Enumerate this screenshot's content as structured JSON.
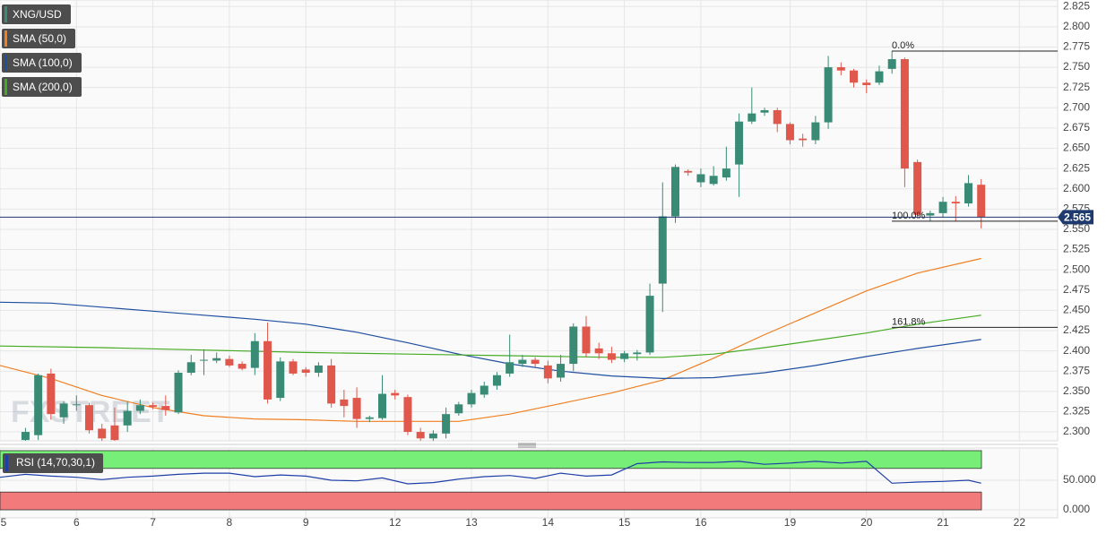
{
  "chart_data": [
    {
      "type": "candlestick",
      "title": "XNG/USD",
      "watermark": "FXSTREET",
      "up_color": "#3a8b76",
      "down_color": "#e0574b",
      "x": [
        2,
        3,
        4,
        5,
        6,
        7,
        8,
        9,
        10,
        11,
        12,
        13,
        14,
        15,
        16,
        17,
        18,
        19,
        20,
        21,
        22,
        23,
        24,
        25,
        26,
        27,
        28,
        29,
        30,
        31,
        32,
        33,
        34,
        35,
        36,
        37,
        38,
        39,
        40,
        41,
        42,
        43,
        44,
        45,
        46,
        47,
        48,
        49,
        50,
        51,
        52,
        53,
        54,
        55,
        56,
        57,
        58,
        59,
        60,
        61,
        62,
        63,
        64,
        65,
        66,
        67,
        68,
        69,
        70,
        71,
        72,
        73,
        74,
        75,
        76,
        77
      ],
      "open": [
        2.29,
        2.296,
        2.372,
        2.318,
        2.333,
        2.333,
        2.304,
        2.308,
        2.308,
        2.326,
        2.333,
        2.332,
        2.324,
        2.373,
        2.388,
        2.388,
        2.39,
        2.384,
        2.379,
        2.412,
        2.342,
        2.387,
        2.377,
        2.373,
        2.382,
        2.34,
        2.342,
        2.316,
        2.317,
        2.348,
        2.343,
        2.3,
        2.292,
        2.298,
        2.323,
        2.334,
        2.346,
        2.357,
        2.372,
        2.384,
        2.389,
        2.382,
        2.367,
        2.384,
        2.43,
        2.403,
        2.397,
        2.39,
        2.396,
        2.398,
        2.483,
        2.566,
        2.622,
        2.608,
        2.606,
        2.614,
        2.63,
        2.683,
        2.694,
        2.697,
        2.68,
        2.662,
        2.66,
        2.682,
        2.75,
        2.746,
        2.731,
        2.731,
        2.748,
        2.76,
        2.633,
        2.567,
        2.57,
        2.584,
        2.582,
        2.605
      ],
      "high": [
        2.305,
        2.372,
        2.378,
        2.338,
        2.345,
        2.336,
        2.31,
        2.33,
        2.337,
        2.34,
        2.336,
        2.345,
        2.376,
        2.395,
        2.402,
        2.398,
        2.394,
        2.387,
        2.422,
        2.435,
        2.392,
        2.39,
        2.38,
        2.386,
        2.39,
        2.352,
        2.355,
        2.32,
        2.37,
        2.352,
        2.346,
        2.305,
        2.302,
        2.33,
        2.337,
        2.352,
        2.362,
        2.374,
        2.42,
        2.395,
        2.392,
        2.388,
        2.395,
        2.434,
        2.443,
        2.41,
        2.405,
        2.4,
        2.401,
        2.483,
        2.608,
        2.63,
        2.624,
        2.625,
        2.628,
        2.652,
        2.693,
        2.725,
        2.7,
        2.7,
        2.682,
        2.668,
        2.69,
        2.764,
        2.756,
        2.748,
        2.735,
        2.752,
        2.77,
        2.762,
        2.636,
        2.573,
        2.59,
        2.591,
        2.617,
        2.612
      ],
      "low": [
        2.289,
        2.29,
        2.315,
        2.31,
        2.326,
        2.298,
        2.289,
        2.289,
        2.3,
        2.322,
        2.328,
        2.32,
        2.322,
        2.37,
        2.37,
        2.385,
        2.38,
        2.376,
        2.37,
        2.335,
        2.338,
        2.37,
        2.368,
        2.368,
        2.33,
        2.318,
        2.305,
        2.312,
        2.315,
        2.34,
        2.296,
        2.289,
        2.289,
        2.292,
        2.32,
        2.33,
        2.342,
        2.352,
        2.368,
        2.38,
        2.38,
        2.36,
        2.362,
        2.375,
        2.392,
        2.39,
        2.385,
        2.386,
        2.388,
        2.395,
        2.448,
        2.558,
        2.616,
        2.602,
        2.604,
        2.61,
        2.59,
        2.68,
        2.69,
        2.67,
        2.655,
        2.652,
        2.655,
        2.674,
        2.74,
        2.725,
        2.718,
        2.728,
        2.742,
        2.602,
        2.563,
        2.56,
        2.565,
        2.56,
        2.578,
        2.551
      ],
      "close": [
        2.3,
        2.37,
        2.322,
        2.335,
        2.334,
        2.302,
        2.292,
        2.29,
        2.326,
        2.333,
        2.331,
        2.327,
        2.373,
        2.386,
        2.389,
        2.391,
        2.382,
        2.378,
        2.412,
        2.34,
        2.387,
        2.372,
        2.373,
        2.382,
        2.335,
        2.332,
        2.316,
        2.318,
        2.347,
        2.345,
        2.3,
        2.292,
        2.298,
        2.322,
        2.334,
        2.348,
        2.357,
        2.37,
        2.386,
        2.389,
        2.384,
        2.366,
        2.384,
        2.43,
        2.397,
        2.397,
        2.389,
        2.397,
        2.398,
        2.468,
        2.566,
        2.627,
        2.62,
        2.618,
        2.616,
        2.625,
        2.683,
        2.693,
        2.697,
        2.68,
        2.66,
        2.66,
        2.682,
        2.75,
        2.746,
        2.731,
        2.728,
        2.745,
        2.76,
        2.625,
        2.568,
        2.57,
        2.584,
        2.582,
        2.607,
        2.565
      ],
      "lines": [
        {
          "name": "SMA (50,0)",
          "color": "#f07f22",
          "x": [
            0,
            4,
            8,
            12,
            16,
            20,
            24,
            28,
            32,
            36,
            40,
            44,
            48,
            52,
            56,
            60,
            64,
            68,
            72,
            77
          ],
          "values": [
            2.382,
            2.366,
            2.345,
            2.33,
            2.32,
            2.316,
            2.315,
            2.313,
            2.313,
            2.313,
            2.322,
            2.335,
            2.348,
            2.364,
            2.391,
            2.42,
            2.447,
            2.474,
            2.496,
            2.514
          ]
        },
        {
          "name": "SMA (100,0)",
          "color": "#1f4fa0",
          "x": [
            0,
            4,
            8,
            12,
            16,
            20,
            24,
            28,
            32,
            36,
            40,
            44,
            48,
            52,
            56,
            60,
            64,
            68,
            72,
            77
          ],
          "values": [
            2.46,
            2.459,
            2.454,
            2.449,
            2.444,
            2.439,
            2.433,
            2.423,
            2.41,
            2.396,
            2.384,
            2.375,
            2.369,
            2.366,
            2.367,
            2.373,
            2.382,
            2.393,
            2.403,
            2.414
          ]
        },
        {
          "name": "SMA (200,0)",
          "color": "#44aa22",
          "x": [
            0,
            8,
            16,
            24,
            32,
            40,
            48,
            52,
            56,
            60,
            64,
            68,
            72,
            77
          ],
          "values": [
            2.406,
            2.404,
            2.401,
            2.398,
            2.396,
            2.394,
            2.392,
            2.392,
            2.396,
            2.404,
            2.413,
            2.422,
            2.433,
            2.444
          ]
        }
      ],
      "fib_levels": [
        {
          "label": "0.0%",
          "value": 2.77
        },
        {
          "label": "100.0%",
          "value": 2.56
        },
        {
          "label": "161.8%",
          "value": 2.429
        }
      ],
      "last_price": 2.565,
      "xlim": [
        0,
        83
      ],
      "xticks": [
        {
          "value": 0,
          "label": "5"
        },
        {
          "value": 6,
          "label": "6"
        },
        {
          "value": 12,
          "label": "7"
        },
        {
          "value": 18,
          "label": "8"
        },
        {
          "value": 24,
          "label": "9"
        },
        {
          "value": 31,
          "label": "12"
        },
        {
          "value": 37,
          "label": "13"
        },
        {
          "value": 43,
          "label": "14"
        },
        {
          "value": 49,
          "label": "15"
        },
        {
          "value": 55,
          "label": "16"
        },
        {
          "value": 62,
          "label": "19"
        },
        {
          "value": 68,
          "label": "20"
        },
        {
          "value": 74,
          "label": "21"
        },
        {
          "value": 80,
          "label": "22"
        }
      ],
      "ylim": [
        2.289,
        2.833
      ],
      "yticks": [
        {
          "value": 2.3,
          "label": "2.300"
        },
        {
          "value": 2.325,
          "label": "2.325"
        },
        {
          "value": 2.35,
          "label": "2.350"
        },
        {
          "value": 2.375,
          "label": "2.375"
        },
        {
          "value": 2.4,
          "label": "2.400"
        },
        {
          "value": 2.425,
          "label": "2.425"
        },
        {
          "value": 2.45,
          "label": "2.450"
        },
        {
          "value": 2.475,
          "label": "2.475"
        },
        {
          "value": 2.5,
          "label": "2.500"
        },
        {
          "value": 2.525,
          "label": "2.525"
        },
        {
          "value": 2.55,
          "label": "2.550"
        },
        {
          "value": 2.575,
          "label": "2.575"
        },
        {
          "value": 2.6,
          "label": "2.600"
        },
        {
          "value": 2.625,
          "label": "2.625"
        },
        {
          "value": 2.65,
          "label": "2.650"
        },
        {
          "value": 2.675,
          "label": "2.675"
        },
        {
          "value": 2.7,
          "label": "2.700"
        },
        {
          "value": 2.725,
          "label": "2.725"
        },
        {
          "value": 2.75,
          "label": "2.750"
        },
        {
          "value": 2.775,
          "label": "2.775"
        },
        {
          "value": 2.8,
          "label": "2.800"
        },
        {
          "value": 2.825,
          "label": "2.825"
        }
      ],
      "grid": true
    },
    {
      "type": "line",
      "title": "RSI (14,70,30,1)",
      "series": [
        {
          "color": "#1f3fa8",
          "x": [
            0,
            2,
            4,
            6,
            8,
            10,
            12,
            14,
            16,
            18,
            20,
            22,
            24,
            26,
            28,
            30,
            32,
            34,
            36,
            38,
            40,
            42,
            44,
            46,
            48,
            50,
            52,
            54,
            56,
            58,
            60,
            62,
            64,
            66,
            68,
            70,
            72,
            74,
            76,
            77
          ],
          "values": [
            55,
            60,
            57,
            55,
            51,
            55,
            57,
            60,
            62,
            62,
            56,
            59,
            57,
            50,
            49,
            54,
            44,
            46,
            52,
            56,
            58,
            53,
            62,
            57,
            59,
            78,
            81,
            80,
            80,
            82,
            77,
            79,
            82,
            79,
            82,
            45,
            47,
            48,
            50,
            45
          ]
        }
      ],
      "bands": [
        {
          "from": 70,
          "to": 100,
          "color": "#77ee77"
        },
        {
          "from": 0,
          "to": 30,
          "color": "#f27a7a"
        }
      ],
      "ylim": [
        -13.6,
        104.5
      ],
      "yticks": [
        {
          "value": 50,
          "label": "50.000"
        },
        {
          "value": 0,
          "label": "0.000"
        }
      ],
      "grid": true
    }
  ]
}
